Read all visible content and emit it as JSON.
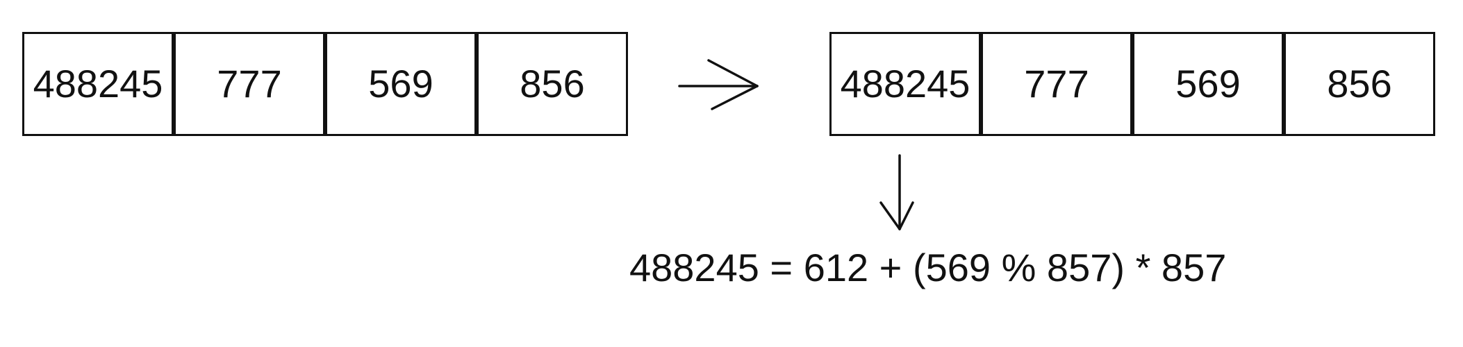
{
  "source_array": {
    "cells": [
      "488245",
      "777",
      "569",
      "856"
    ]
  },
  "result_array": {
    "cells": [
      "488245",
      "777",
      "569",
      "856"
    ]
  },
  "formula": "488245 = 612 + (569 % 857) * 857",
  "icons": {
    "transform_arrow": "right-arrow-icon",
    "derivation_arrow": "down-arrow-icon"
  }
}
